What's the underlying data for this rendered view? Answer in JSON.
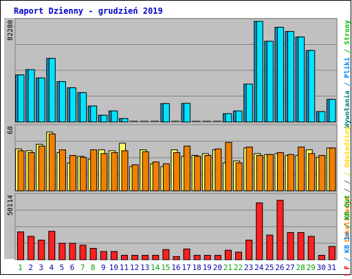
{
  "chart_data": {
    "type": "bar",
    "title": "Raport Dzienny -  grudzień  2019",
    "categories": [
      "1",
      "2",
      "3",
      "4",
      "5",
      "6",
      "7",
      "8",
      "9",
      "10",
      "11",
      "12",
      "13",
      "14",
      "15",
      "16",
      "17",
      "18",
      "19",
      "20",
      "21",
      "22",
      "23",
      "24",
      "25",
      "26",
      "27",
      "28",
      "29",
      "30",
      "31"
    ],
    "category_colors": {
      "weekday": "#0000aa",
      "weekend": "#00a000",
      "weekend_days": [
        "1",
        "7",
        "8",
        "14",
        "15",
        "21",
        "22",
        "28",
        "29"
      ]
    },
    "panels": [
      {
        "max_label": "82280",
        "ylim": [
          0,
          82280
        ],
        "series": [
          {
            "name": "Wywołania",
            "color": "#00b0b0",
            "bar_color": "#1e90c0",
            "values": [
              38500,
              42800,
              36000,
              52000,
              33000,
              28000,
              24000,
              13000,
              5500,
              9000,
              2800,
              0,
              0,
              0,
              15000,
              0,
              15200,
              0,
              0,
              0,
              6800,
              9000,
              31000,
              82280,
              66000,
              77500,
              74000,
              69500,
              58500,
              8500,
              18500
            ]
          },
          {
            "name": "Pliki",
            "color": "#0080ff",
            "bar_color": "#00e4ff",
            "values": [
              38500,
              42800,
              36000,
              52000,
              33000,
              28000,
              24000,
              13000,
              5500,
              9000,
              2800,
              0,
              0,
              0,
              15000,
              0,
              15200,
              0,
              0,
              0,
              6800,
              9000,
              31000,
              82280,
              66000,
              77500,
              74000,
              69500,
              58500,
              8500,
              18500
            ]
          }
        ],
        "side_labels": [
          {
            "text": "Wywołania",
            "color": "#008080"
          },
          {
            "text": "Pliki",
            "color": "#0080ff"
          },
          {
            "text": "Strony",
            "color": "#00c000"
          }
        ]
      },
      {
        "max_label": "68",
        "ylim": [
          0,
          68
        ],
        "series": [
          {
            "name": "Odwiedziny",
            "color": "#ffd700",
            "bar_color": "#ffff66",
            "values": [
              45,
              43,
              50,
              63,
              41,
              30,
              37,
              34,
              44,
              43,
              51,
              26,
              44,
              29,
              26,
              44,
              37,
              38,
              40,
              44,
              30,
              32,
              46,
              40,
              39,
              40,
              38,
              38,
              44,
              36,
              46
            ]
          },
          {
            "name": "Strony",
            "color": "#00c000",
            "bar_color": "#f08000",
            "values": [
              43,
              41,
              48,
              61,
              44,
              38,
              36,
              44,
              40,
              41,
              43,
              28,
              42,
              31,
              29,
              41,
              48,
              37,
              38,
              45,
              52,
              30,
              47,
              38,
              39,
              41,
              39,
              47,
              40,
              38,
              46
            ]
          }
        ],
        "side_labels": [
          {
            "text": "Lokalizacje",
            "color": "#ff8000"
          },
          {
            "text": "/",
            "color": "#606060"
          },
          {
            "text": "Odwiedziny",
            "color": "#ffd700"
          }
        ]
      },
      {
        "max_label": "50114",
        "ylim": [
          0,
          50114
        ],
        "series": [
          {
            "name": "KB F",
            "color": "#ff0000",
            "bar_color": "#ff2020",
            "values": [
              22000,
              18500,
              15500,
              22500,
              13000,
              13000,
              11500,
              9000,
              6500,
              6500,
              3500,
              3500,
              3500,
              3500,
              8000,
              2500,
              8500,
              3500,
              3500,
              3500,
              7500,
              6000,
              15500,
              45000,
              19500,
              47000,
              21500,
              21500,
              18500,
              3500,
              10500
            ]
          }
        ],
        "side_labels": [
          {
            "text": "KB F",
            "color": "#ff0000"
          },
          {
            "text": "KB In",
            "color": "#0080ff"
          },
          {
            "text": "KB Out",
            "color": "#00a000"
          }
        ]
      }
    ]
  }
}
